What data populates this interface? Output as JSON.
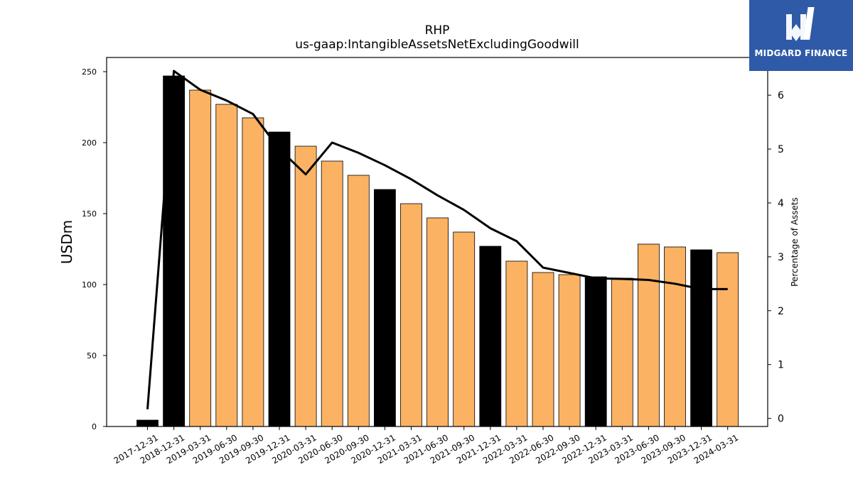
{
  "chart_data": {
    "type": "bar",
    "title": "RHP",
    "subtitle": "us-gaap:IntangibleAssetsNetExcludingGoodwill",
    "ylabel": "USDm",
    "y2label": "Percentage of Assets",
    "ylim": [
      0,
      260
    ],
    "y2lim": [
      -0.15,
      6.7
    ],
    "yticks": [
      0,
      50,
      100,
      150,
      200,
      250
    ],
    "y2ticks": [
      0,
      1,
      2,
      3,
      4,
      5,
      6
    ],
    "categories": [
      "2017-12-31",
      "2018-12-31",
      "2019-03-31",
      "2019-06-30",
      "2019-09-30",
      "2019-12-31",
      "2020-03-31",
      "2020-06-30",
      "2020-09-30",
      "2020-12-31",
      "2021-03-31",
      "2021-06-30",
      "2021-09-30",
      "2021-12-31",
      "2022-03-31",
      "2022-06-30",
      "2022-09-30",
      "2022-12-31",
      "2023-03-31",
      "2023-06-30",
      "2023-09-30",
      "2023-12-31",
      "2024-03-31"
    ],
    "series": [
      {
        "type": "bar",
        "values": [
          4.5,
          247,
          237,
          227,
          217.5,
          207.5,
          197.5,
          187,
          177,
          167,
          157,
          147,
          137,
          127,
          116.5,
          108.5,
          107,
          105.5,
          104.5,
          128.5,
          126.5,
          124.5,
          122.5
        ],
        "highlight": [
          true,
          true,
          false,
          false,
          false,
          true,
          false,
          false,
          false,
          true,
          false,
          false,
          false,
          true,
          false,
          false,
          false,
          true,
          false,
          false,
          false,
          true,
          false
        ]
      },
      {
        "type": "line",
        "axis": "right",
        "values": [
          0.17,
          6.45,
          6.1,
          5.9,
          5.65,
          5.0,
          4.53,
          5.12,
          4.93,
          4.7,
          4.44,
          4.14,
          3.87,
          3.53,
          3.29,
          2.8,
          2.7,
          2.6,
          2.59,
          2.57,
          2.5,
          2.4,
          2.4
        ]
      }
    ],
    "colors": {
      "bar": "#fbb263",
      "highlight_bar": "#000000",
      "line": "#000000"
    },
    "grid": false,
    "legend": "none"
  },
  "logo": {
    "text": "MIDGARD FINANCE"
  }
}
